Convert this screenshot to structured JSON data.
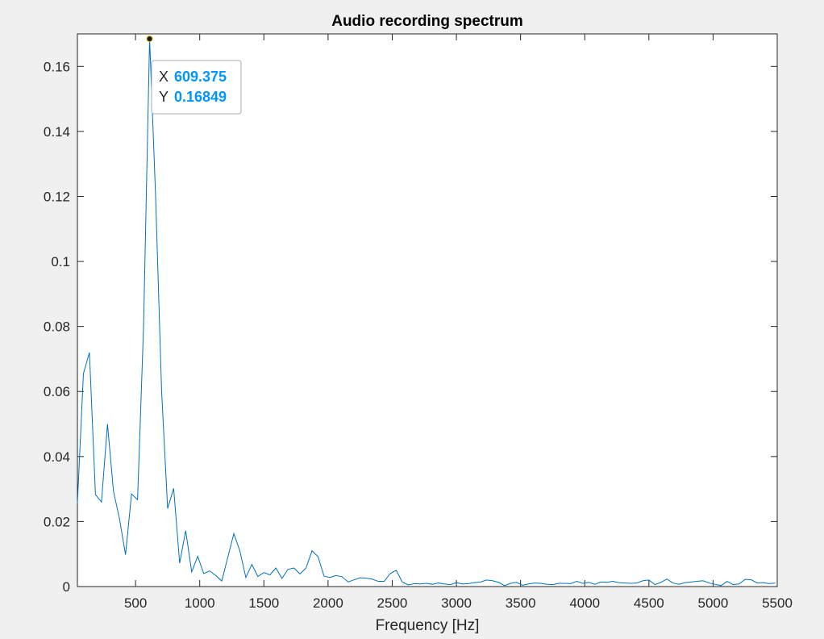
{
  "chart_data": {
    "type": "line",
    "title": "Audio recording spectrum",
    "xlabel": "Frequency [Hz]",
    "ylabel": "",
    "xlim": [
      46.875,
      5500
    ],
    "ylim": [
      0,
      0.17
    ],
    "xticks": [
      500,
      1000,
      1500,
      2000,
      2500,
      3000,
      3500,
      4000,
      4500,
      5000,
      5500
    ],
    "xtick_labels": [
      "500",
      "1000",
      "1500",
      "2000",
      "2500",
      "3000",
      "3500",
      "4000",
      "4500",
      "5000",
      "5500"
    ],
    "yticks": [
      0,
      0.02,
      0.04,
      0.06,
      0.08,
      0.1,
      0.12,
      0.14,
      0.16
    ],
    "ytick_labels": [
      "0",
      "0.02",
      "0.04",
      "0.06",
      "0.08",
      "0.1",
      "0.12",
      "0.14",
      "0.16"
    ],
    "grid": false,
    "line_color": "#0072bd",
    "series": [
      {
        "x": [
          46.875,
          93.75,
          140.625,
          187.5,
          234.375,
          281.25,
          328.125,
          375,
          421.875,
          468.75,
          515.625,
          562.5,
          609.375,
          656.25,
          703.125,
          750,
          796.875,
          843.75,
          890.625,
          937.5,
          984.375,
          1031.25,
          1078.125,
          1125,
          1171.875,
          1218.75,
          1265.625,
          1312.5,
          1359.375,
          1406.25,
          1453.125,
          1500,
          1546.875,
          1593.75,
          1640.625,
          1687.5,
          1734.375,
          1781.25,
          1828.125,
          1875,
          1921.875,
          1968.75,
          2015.625,
          2062.5,
          2109.375,
          2156.25,
          2203.125,
          2250,
          2296.875,
          2343.75,
          2390.625,
          2437.5,
          2484.375,
          2531.25,
          2578.125,
          2625,
          2671.875,
          2718.75,
          2765.625,
          2812.5,
          2859.375,
          2906.25,
          2953.125,
          3000,
          3046.875,
          3093.75,
          3140.625,
          3187.5,
          3234.375,
          3281.25,
          3328.125,
          3375,
          3421.875,
          3468.75,
          3515.625,
          3562.5,
          3609.375,
          3656.25,
          3703.125,
          3750,
          3796.875,
          3843.75,
          3890.625,
          3937.5,
          3984.375,
          4031.25,
          4078.125,
          4125,
          4171.875,
          4218.75,
          4265.625,
          4312.5,
          4359.375,
          4406.25,
          4453.125,
          4500,
          4546.875,
          4593.75,
          4640.625,
          4687.5,
          4734.375,
          4781.25,
          4828.125,
          4875,
          4921.875,
          4968.75,
          5015.625,
          5062.5,
          5109.375,
          5156.25,
          5203.125,
          5250,
          5296.875,
          5343.75,
          5390.625,
          5437.5,
          5484.375
        ],
        "y": [
          0.0255,
          0.0655,
          0.072,
          0.0283,
          0.026,
          0.05,
          0.0293,
          0.0208,
          0.0098,
          0.0285,
          0.0267,
          0.08,
          0.16849,
          0.12,
          0.06,
          0.024,
          0.0302,
          0.0072,
          0.0172,
          0.0045,
          0.0093,
          0.004,
          0.0048,
          0.0034,
          0.0017,
          0.009,
          0.0163,
          0.011,
          0.0028,
          0.0068,
          0.0031,
          0.0043,
          0.0036,
          0.0057,
          0.0025,
          0.0053,
          0.0057,
          0.0039,
          0.0057,
          0.011,
          0.0092,
          0.0032,
          0.0028,
          0.0034,
          0.003,
          0.0014,
          0.0021,
          0.0027,
          0.0026,
          0.0023,
          0.0016,
          0.0016,
          0.004,
          0.005,
          0.0014,
          0.0005,
          0.0009,
          0.0008,
          0.001,
          0.0007,
          0.0011,
          0.0008,
          0.0006,
          0.0012,
          0.0008,
          0.0009,
          0.0012,
          0.0014,
          0.002,
          0.0018,
          0.0013,
          0.0003,
          0.001,
          0.0013,
          0.0004,
          0.0008,
          0.0011,
          0.001,
          0.0007,
          0.0006,
          0.001,
          0.001,
          0.0009,
          0.0016,
          0.001,
          0.0013,
          0.0007,
          0.0014,
          0.0013,
          0.0016,
          0.0012,
          0.0011,
          0.001,
          0.0011,
          0.0018,
          0.002,
          0.0006,
          0.0013,
          0.0023,
          0.0011,
          0.0007,
          0.0012,
          0.0014,
          0.0016,
          0.0018,
          0.0011,
          0.0007,
          0.0003,
          0.0016,
          0.0006,
          0.0008,
          0.0022,
          0.0021,
          0.0011,
          0.0012,
          0.0009,
          0.0011
        ]
      }
    ],
    "datatip": {
      "x_label": "X",
      "x_value": "609.375",
      "y_label": "Y",
      "y_value": "0.16849",
      "x": 609.375,
      "y": 0.16849,
      "value_color": "#0095ff"
    }
  }
}
